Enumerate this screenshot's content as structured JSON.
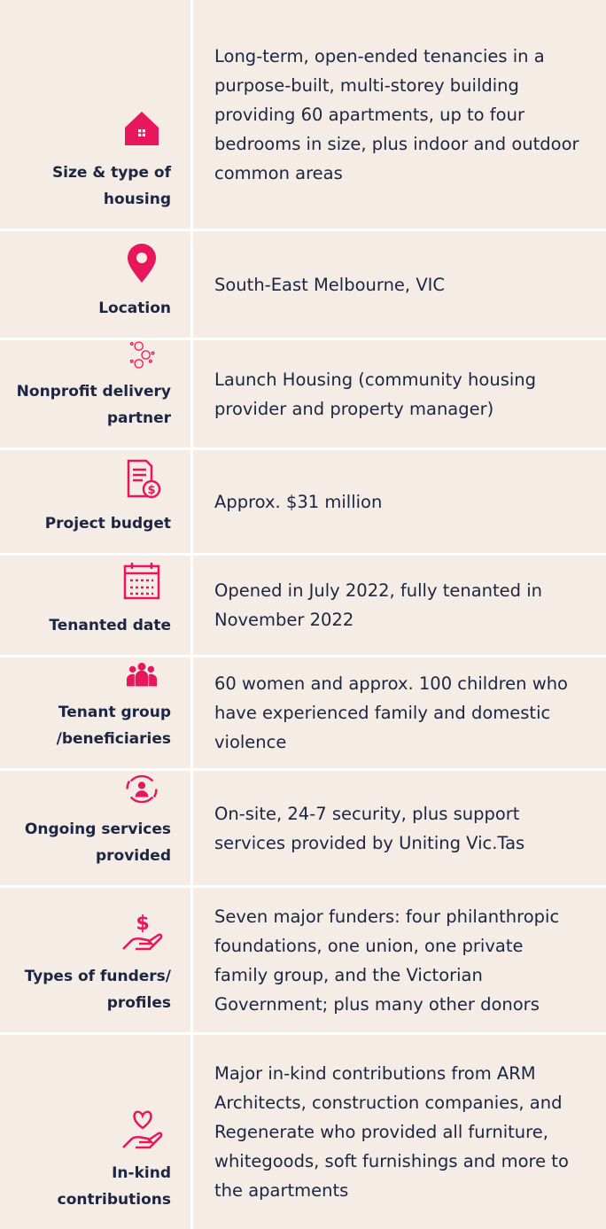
{
  "rows": [
    {
      "label": "Size & type of housing",
      "text": "Long-term, open-ended tenancies in a purpose-built, multi-storey building providing 60 apartments, up to four bedrooms in size, plus indoor and outdoor common areas"
    },
    {
      "label": "Location",
      "text": "South-East Melbourne, VIC"
    },
    {
      "label": "Nonprofit delivery partner",
      "text": "Launch Housing (community housing provider and property manager)"
    },
    {
      "label": "Project budget",
      "text": "Approx. $31 million"
    },
    {
      "label": "Tenanted date",
      "text": "Opened in July 2022, fully tenanted in November 2022"
    },
    {
      "label": "Tenant group /beneficiaries",
      "text": "60 women and approx. 100 children who have experienced family and domestic violence"
    },
    {
      "label": "Ongoing services provided",
      "text": "On-site, 24-7 security, plus support services provided by Uniting Vic.Tas"
    },
    {
      "label": "Types of funders/ profiles",
      "text": "Seven major funders: four philanthropic foundations, one union, one private family group, and the Victorian Government; plus many other donors"
    },
    {
      "label": "In-kind contributions",
      "text": "Major in-kind contributions from ARM Architects, construction companies, and Regenerate who provided all furniture, whitegoods, soft furnishings and more to the apartments"
    }
  ]
}
